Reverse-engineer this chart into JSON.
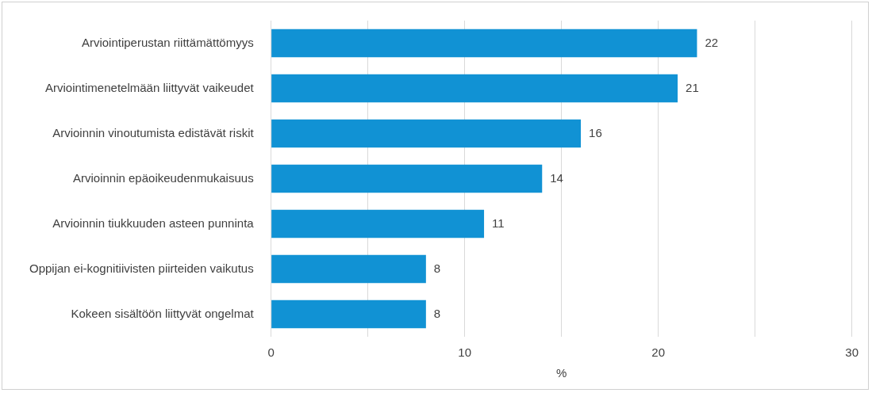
{
  "chart_data": {
    "type": "bar",
    "orientation": "horizontal",
    "categories": [
      "Arviointiperustan riittämättömyys",
      "Arviointimenetelmään liittyvät vaikeudet",
      "Arvioinnin vinoutumista edistävät riskit",
      "Arvioinnin epäoikeudenmukaisuus",
      "Arvioinnin tiukkuuden asteen punninta",
      "Oppijan ei-kognitiivisten piirteiden vaikutus",
      "Kokeen sisältöön liittyvät ongelmat"
    ],
    "values": [
      22,
      21,
      16,
      14,
      11,
      8,
      8
    ],
    "color": "#1192d4",
    "xlim": [
      0,
      30
    ],
    "xticks": [
      0,
      {
        "value": 5,
        "label": null
      },
      10,
      {
        "value": 15,
        "label": null
      },
      20,
      {
        "value": 25,
        "label": null
      },
      30
    ],
    "xlabel": "%",
    "grid": "x",
    "data_labels": true,
    "legend": false
  }
}
